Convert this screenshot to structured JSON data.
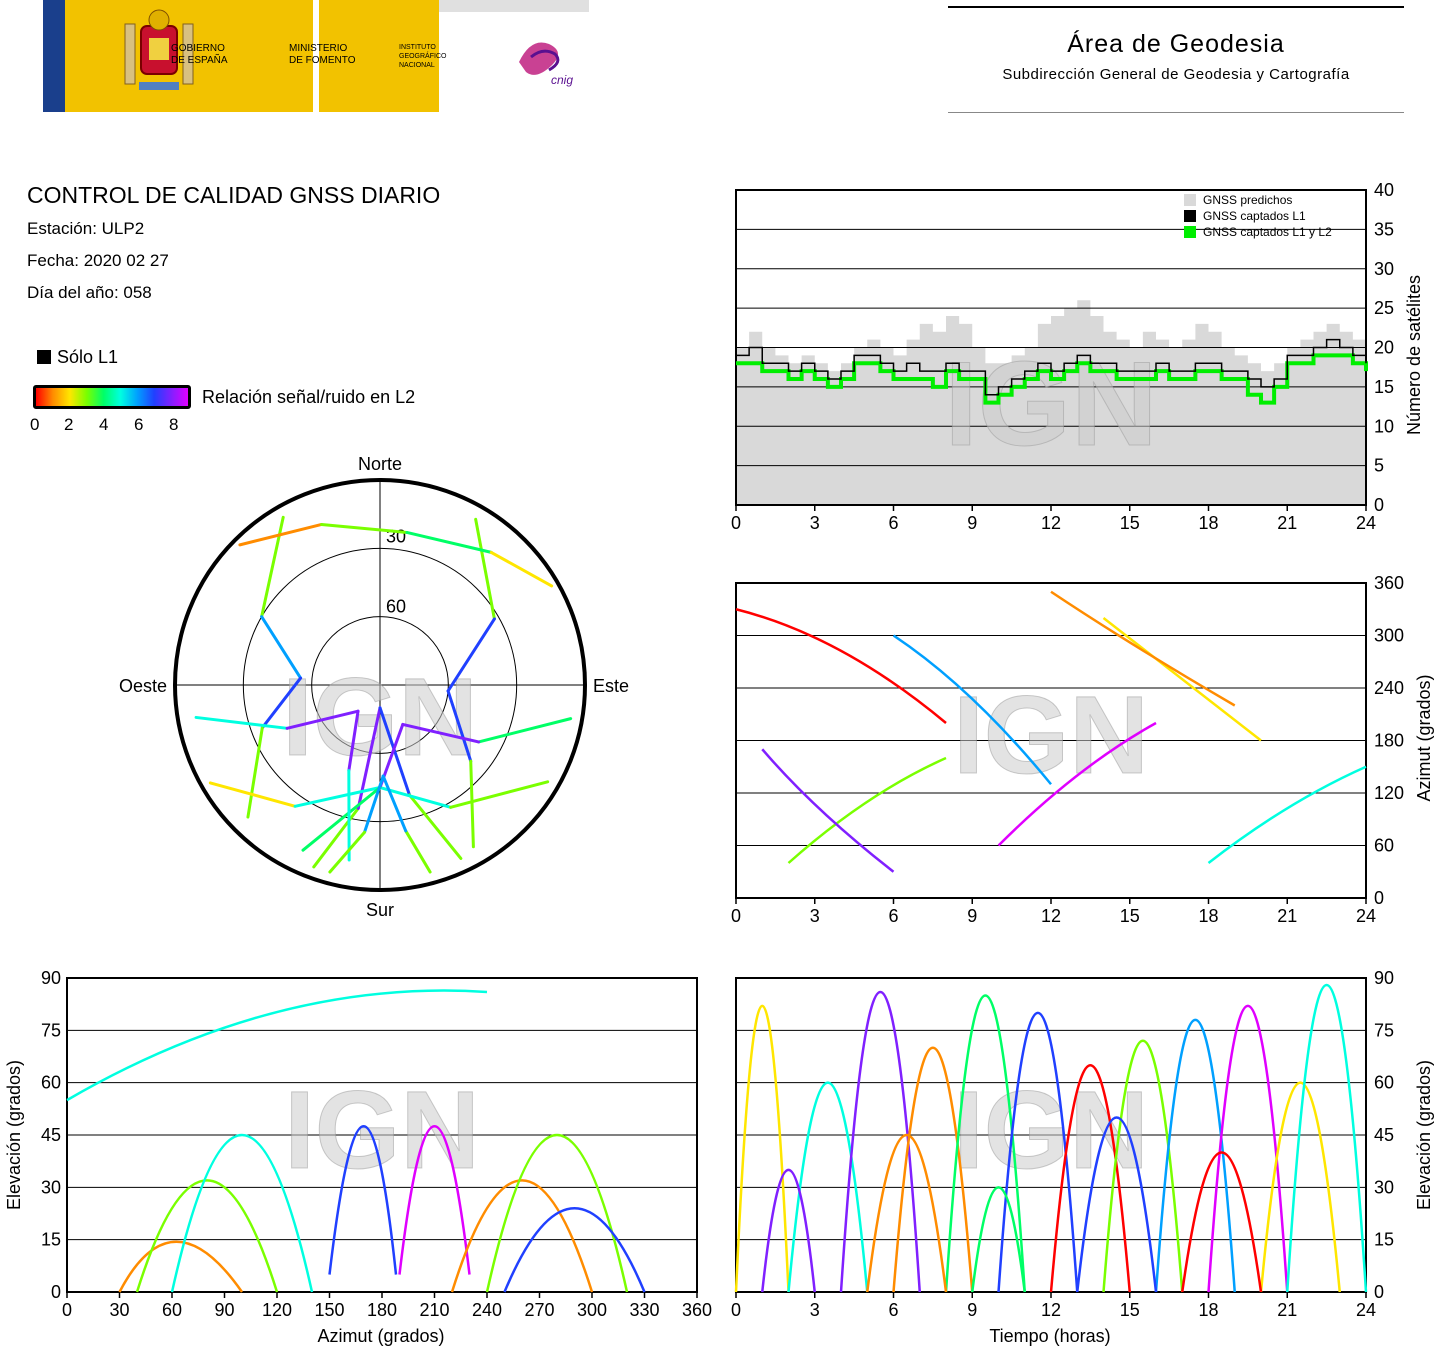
{
  "header": {
    "gob_line1": "GOBIERNO",
    "gob_line2": "DE ESPAÑA",
    "min_line1": "MINISTERIO",
    "min_line2": "DE FOMENTO",
    "ign_line1": "INSTITUTO",
    "ign_line2": "GEOGRÁFICO",
    "ign_line3": "NACIONAL",
    "cnig": "cnig",
    "area_title": "Área de Geodesia",
    "area_subtitle": "Subdirección General de Geodesia y Cartografía"
  },
  "report": {
    "title": "CONTROL DE CALIDAD GNSS DIARIO",
    "station": "Estación: ULP2",
    "date": "Fecha: 2020 02 27",
    "doy": "Día del año: 058",
    "l1_only": "Sólo L1",
    "snr_label": "Relación señal/ruido en L2",
    "snr_ticks": [
      "0",
      "2",
      "4",
      "6",
      "8"
    ]
  },
  "watermark": "IGN",
  "colors": {
    "predicted": "#d9d9d9",
    "l1": "#000000",
    "l1l2": "#00ee00",
    "snr_scale": [
      "#ff0000",
      "#ff8c00",
      "#ffe600",
      "#7aff00",
      "#00ff66",
      "#00ffe0",
      "#00a0ff",
      "#2040ff",
      "#8020ff",
      "#e000ff"
    ]
  },
  "chart_data": [
    {
      "id": "satellite_count",
      "type": "area",
      "x_ticks": [
        "0",
        "3",
        "6",
        "9",
        "12",
        "15",
        "18",
        "21",
        "24"
      ],
      "y_ticks": [
        "0",
        "5",
        "10",
        "15",
        "20",
        "25",
        "30",
        "35",
        "40"
      ],
      "ylabel": "Número de satélites",
      "xlim": [
        0,
        24
      ],
      "ylim": [
        0,
        40
      ],
      "legend": [
        "GNSS predichos",
        "GNSS captados L1",
        "GNSS captados L1 y L2"
      ],
      "legend_position": "top-right",
      "grid": true,
      "x": [
        0,
        0.5,
        1,
        1.5,
        2,
        2.5,
        3,
        3.5,
        4,
        4.5,
        5,
        5.5,
        6,
        6.5,
        7,
        7.5,
        8,
        8.5,
        9,
        9.5,
        10,
        10.5,
        11,
        11.5,
        12,
        12.5,
        13,
        13.5,
        14,
        14.5,
        15,
        15.5,
        16,
        16.5,
        17,
        17.5,
        18,
        18.5,
        19,
        19.5,
        20,
        20.5,
        21,
        21.5,
        22,
        22.5,
        23,
        23.5,
        24
      ],
      "series": [
        {
          "name": "GNSS predichos",
          "values": [
            20,
            22,
            20,
            19,
            18,
            19,
            18,
            17,
            18,
            20,
            21,
            20,
            19,
            21,
            23,
            22,
            24,
            23,
            20,
            18,
            18,
            19,
            20,
            23,
            24,
            25,
            26,
            24,
            22,
            21,
            20,
            22,
            21,
            20,
            21,
            23,
            22,
            20,
            19,
            18,
            17,
            18,
            20,
            21,
            22,
            23,
            22,
            21,
            20
          ]
        },
        {
          "name": "GNSS captados L1",
          "values": [
            19,
            20,
            18,
            18,
            17,
            18,
            17,
            16,
            17,
            19,
            19,
            18,
            17,
            18,
            17,
            17,
            18,
            17,
            17,
            14,
            15,
            16,
            17,
            18,
            17,
            18,
            19,
            18,
            18,
            17,
            17,
            17,
            18,
            17,
            17,
            18,
            18,
            17,
            17,
            16,
            15,
            16,
            19,
            19,
            20,
            21,
            20,
            19,
            18
          ]
        },
        {
          "name": "GNSS captados L1 y L2",
          "values": [
            18,
            18,
            17,
            17,
            16,
            17,
            16,
            15,
            16,
            18,
            18,
            17,
            16,
            16,
            16,
            15,
            17,
            16,
            16,
            13,
            14,
            15,
            16,
            17,
            16,
            17,
            18,
            17,
            17,
            16,
            16,
            16,
            17,
            16,
            16,
            17,
            17,
            16,
            16,
            14,
            13,
            15,
            18,
            18,
            19,
            19,
            19,
            18,
            17
          ]
        }
      ]
    },
    {
      "id": "skyplot",
      "type": "scatter",
      "labels": [
        "Norte",
        "Este",
        "Sur",
        "Oeste"
      ],
      "ring_labels": [
        "30",
        "60"
      ],
      "tracks": [
        {
          "az": [
            330,
            300,
            275,
            250,
            225
          ],
          "el": [
            5,
            30,
            55,
            35,
            8
          ],
          "snr": [
            1,
            4,
            8,
            5,
            1
          ]
        },
        {
          "az": [
            30,
            60,
            95,
            130,
            150
          ],
          "el": [
            6,
            32,
            60,
            38,
            8
          ],
          "snr": [
            1,
            5,
            8,
            5,
            1
          ]
        },
        {
          "az": [
            200,
            190,
            180,
            165,
            155
          ],
          "el": [
            5,
            35,
            80,
            40,
            6
          ],
          "snr": [
            0,
            6,
            9,
            5,
            1
          ]
        },
        {
          "az": [
            240,
            215,
            180,
            150,
            120
          ],
          "el": [
            4,
            25,
            45,
            28,
            5
          ],
          "snr": [
            1,
            3,
            6,
            4,
            1
          ]
        },
        {
          "az": [
            315,
            340,
            10,
            40,
            60
          ],
          "el": [
            3,
            15,
            22,
            14,
            3
          ],
          "snr": [
            0,
            2,
            4,
            3,
            0
          ]
        },
        {
          "az": [
            100,
            120,
            150,
            180,
            205
          ],
          "el": [
            5,
            40,
            70,
            45,
            10
          ],
          "snr": [
            1,
            6,
            9,
            6,
            2
          ]
        },
        {
          "az": [
            260,
            245,
            220,
            200,
            190
          ],
          "el": [
            8,
            45,
            75,
            50,
            12
          ],
          "snr": [
            2,
            7,
            9,
            7,
            2
          ]
        },
        {
          "az": [
            165,
            170,
            178,
            186,
            195
          ],
          "el": [
            5,
            25,
            50,
            25,
            5
          ],
          "snr": [
            1,
            4,
            7,
            4,
            1
          ]
        }
      ]
    },
    {
      "id": "azimuth_time",
      "type": "scatter",
      "x_ticks": [
        "0",
        "3",
        "6",
        "9",
        "12",
        "15",
        "18",
        "21",
        "24"
      ],
      "y_ticks": [
        "0",
        "60",
        "120",
        "180",
        "240",
        "300",
        "360"
      ],
      "ylabel": "Azimut (grados)",
      "xlim": [
        0,
        24
      ],
      "ylim": [
        0,
        360
      ],
      "grid": true
    },
    {
      "id": "elevation_azimuth",
      "type": "scatter",
      "x_ticks": [
        "0",
        "30",
        "60",
        "90",
        "120",
        "150",
        "180",
        "210",
        "240",
        "270",
        "300",
        "330",
        "360"
      ],
      "y_ticks": [
        "0",
        "15",
        "30",
        "45",
        "60",
        "75",
        "90"
      ],
      "xlabel": "Azimut (grados)",
      "ylabel": "Elevación (grados)",
      "xlim": [
        0,
        360
      ],
      "ylim": [
        0,
        90
      ],
      "grid": true
    },
    {
      "id": "elevation_time",
      "type": "scatter",
      "x_ticks": [
        "0",
        "3",
        "6",
        "9",
        "12",
        "15",
        "18",
        "21",
        "24"
      ],
      "y_ticks": [
        "0",
        "15",
        "30",
        "45",
        "60",
        "75",
        "90"
      ],
      "xlabel": "Tiempo (horas)",
      "ylabel": "Elevación (grados)",
      "xlim": [
        0,
        24
      ],
      "ylim": [
        0,
        90
      ],
      "grid": true
    }
  ]
}
